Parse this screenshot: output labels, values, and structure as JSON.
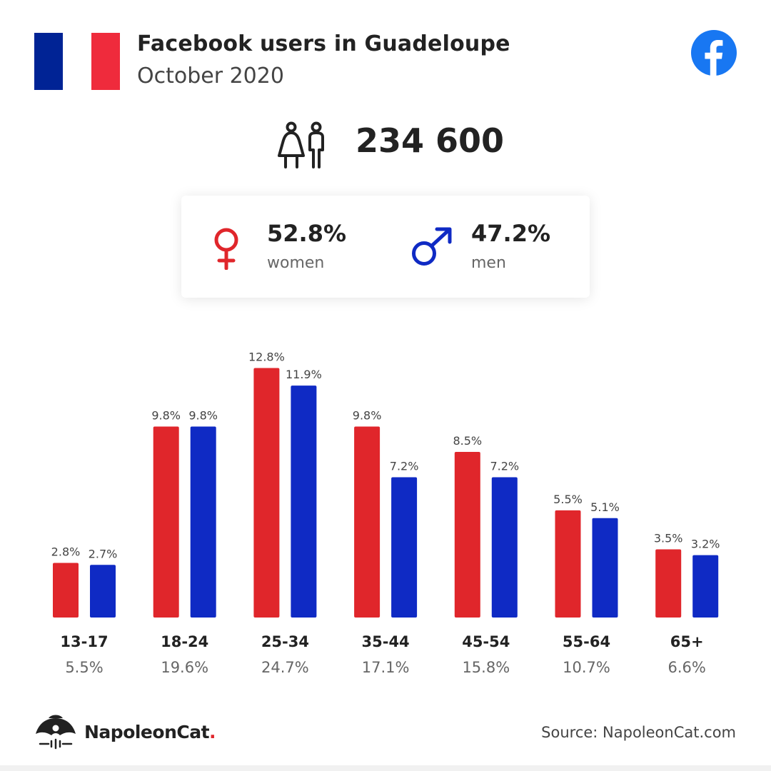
{
  "header": {
    "title": "Facebook users in Guadeloupe",
    "subtitle": "October 2020",
    "flag_colors": [
      "#002395",
      "#ffffff",
      "#ef2b3c"
    ],
    "logo_icon": "facebook-icon",
    "logo_color": "#1877f2"
  },
  "total": {
    "icon": "people-icon",
    "value": "234 600"
  },
  "gender": {
    "women": {
      "icon": "female-symbol-icon",
      "percent": "52.8%",
      "label": "women",
      "color": "#e0262b"
    },
    "men": {
      "icon": "male-symbol-icon",
      "percent": "47.2%",
      "label": "men",
      "color": "#0f2ac4"
    }
  },
  "chart_data": {
    "type": "bar",
    "categories": [
      "13-17",
      "18-24",
      "25-34",
      "35-44",
      "45-54",
      "55-64",
      "65+"
    ],
    "category_totals": [
      "5.5%",
      "19.6%",
      "24.7%",
      "17.1%",
      "15.8%",
      "10.7%",
      "6.6%"
    ],
    "series": [
      {
        "values": [
          2.8,
          9.8,
          12.8,
          9.8,
          8.5,
          5.5,
          3.5
        ],
        "labels": [
          "2.8%",
          "9.8%",
          "12.8%",
          "9.8%",
          "8.5%",
          "5.5%",
          "3.5%"
        ],
        "color": "#e0262b"
      },
      {
        "values": [
          2.7,
          9.8,
          11.9,
          7.2,
          7.2,
          5.1,
          3.2
        ],
        "labels": [
          "2.7%",
          "9.8%",
          "11.9%",
          "7.2%",
          "7.2%",
          "5.1%",
          "3.2%"
        ],
        "color": "#0f2ac4"
      }
    ],
    "grid": false,
    "legend": "none"
  },
  "footer": {
    "brand": "NapoleonCat",
    "brand_dot": ".",
    "brand_icon": "napoleoncat-logo-icon",
    "source": "Source: NapoleonCat.com"
  }
}
